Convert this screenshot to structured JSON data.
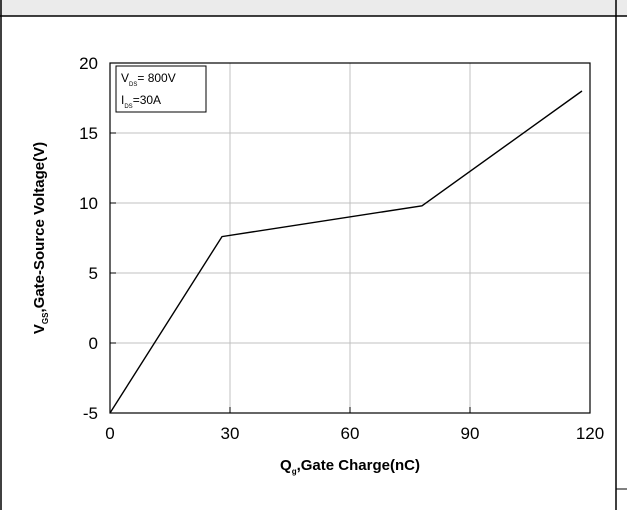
{
  "chart_data": {
    "type": "line",
    "x": [
      0,
      28,
      78,
      118
    ],
    "series": [
      {
        "values": [
          -5,
          7.6,
          9.8,
          18
        ]
      }
    ],
    "xlim": [
      0,
      120
    ],
    "ylim": [
      -5,
      20
    ],
    "xticks": [
      0,
      30,
      60,
      90,
      120
    ],
    "yticks": [
      -5,
      0,
      5,
      10,
      15,
      20
    ],
    "xtick_labels": [
      "0",
      "30",
      "60",
      "90",
      "120"
    ],
    "ytick_labels": [
      "-5",
      "0",
      "5",
      "10",
      "15",
      "20"
    ],
    "xlabel": {
      "main": "Q",
      "sub": "g",
      "rest": ",Gate Charge(nC)"
    },
    "ylabel": {
      "main": "V",
      "sub": "GS",
      "rest": ",Gate-Source Voltage(V)"
    },
    "annotation": {
      "line1": {
        "main": "V",
        "sub": "DS",
        "rest": "= 800V"
      },
      "line2": {
        "main": "I",
        "sub": "DS",
        "rest": "=30A"
      },
      "position": "top-left"
    },
    "grid": true,
    "colors": {
      "line": "#000000",
      "grid": "#c0c0c0",
      "frame": "#000000"
    }
  }
}
